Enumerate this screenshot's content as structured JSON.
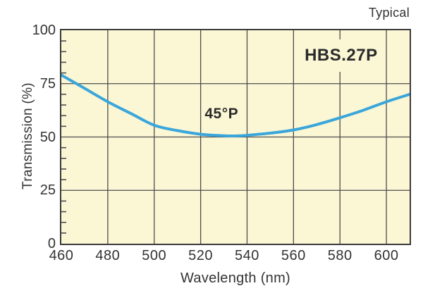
{
  "figure": {
    "corner_note": "Typical",
    "colors": {
      "curve": "#3aa6db",
      "plot_bg": "#fbf7d5",
      "grid": "#4c4c4c",
      "border": "#3a3a3a",
      "text": "#333333",
      "annotation_text": "#2b2b2b"
    }
  },
  "chart_data": {
    "type": "line",
    "title": "",
    "xlabel": "Wavelength (nm)",
    "ylabel": "Transmission (%)",
    "xlim": [
      460,
      610
    ],
    "ylim": [
      0,
      100
    ],
    "x_ticks": [
      460,
      480,
      500,
      520,
      540,
      560,
      580,
      600
    ],
    "y_ticks": [
      0,
      25,
      50,
      75,
      100
    ],
    "y_minor_step": 5,
    "grid": true,
    "legend": "none",
    "series": [
      {
        "name": "45°P",
        "x": [
          460,
          470,
          480,
          490,
          500,
          510,
          520,
          530,
          535,
          540,
          550,
          560,
          570,
          580,
          590,
          600,
          610
        ],
        "y": [
          79.0,
          72.8,
          66.5,
          61.0,
          55.5,
          53.0,
          51.3,
          50.6,
          50.5,
          50.8,
          51.8,
          53.3,
          55.8,
          59.0,
          62.5,
          66.5,
          70.0
        ]
      }
    ],
    "annotations": [
      {
        "role": "curve-label",
        "text": "45°P",
        "x": 529,
        "y": 60.7,
        "style": "plain"
      },
      {
        "role": "model-label",
        "text": "HBS.27P",
        "x": 580.5,
        "y": 88,
        "style": "box"
      }
    ]
  }
}
